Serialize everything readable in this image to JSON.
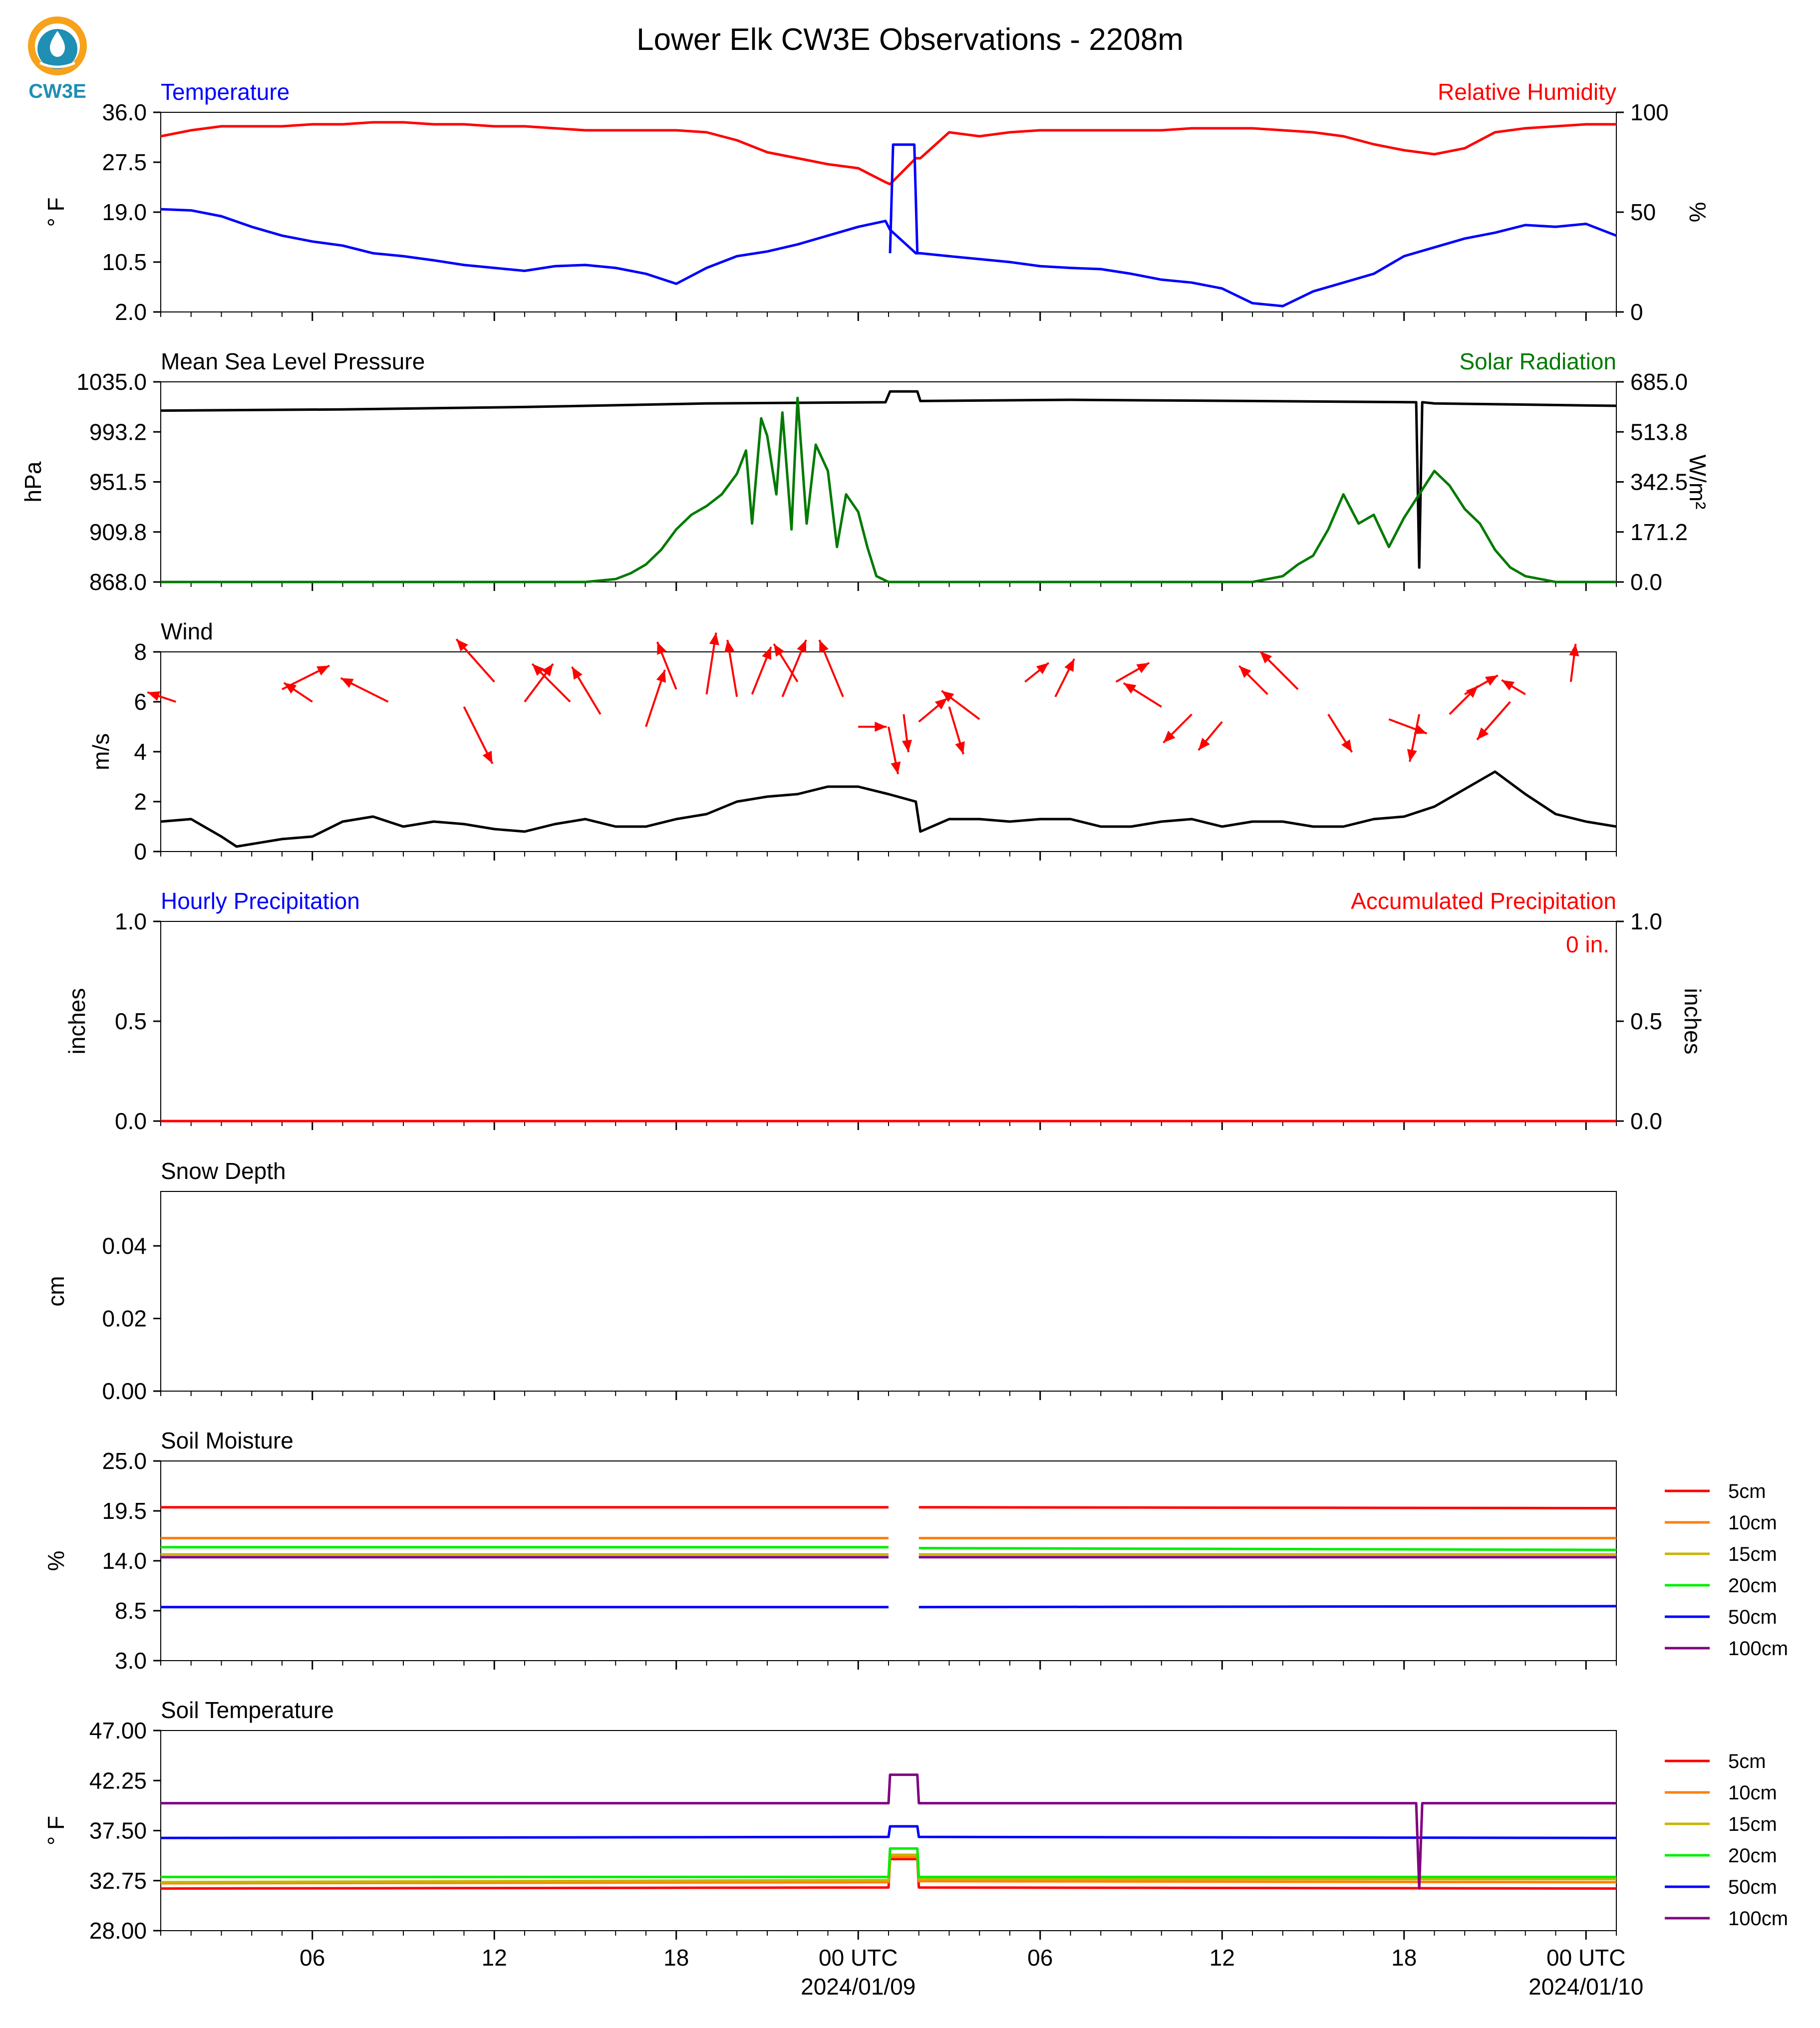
{
  "title": "Lower Elk CW3E Observations - 2208m",
  "logo": {
    "text": "CW3E",
    "color": "#1f8fb3",
    "accent": "#f7a21b"
  },
  "x_axis": {
    "tick_labels": [
      "06",
      "12",
      "18",
      "00 UTC",
      "06",
      "12",
      "18",
      "00 UTC"
    ],
    "date_labels": [
      "2024/01/09",
      "2024/01/10"
    ],
    "hours_span": [
      0,
      48
    ],
    "tick_hours": [
      5,
      11,
      17,
      23,
      29,
      35,
      41,
      47
    ]
  },
  "legend_soil_moisture": [
    "5cm",
    "10cm",
    "15cm",
    "20cm",
    "50cm",
    "100cm"
  ],
  "legend_soil_temperature": [
    "5cm",
    "10cm",
    "15cm",
    "20cm",
    "50cm",
    "100cm"
  ],
  "legend_colors": [
    "#ff0000",
    "#ff8000",
    "#c8b400",
    "#00ee00",
    "#0000ff",
    "#800080"
  ],
  "chart_data": [
    {
      "type": "line",
      "title_left": "Temperature",
      "title_right": "Relative Humidity",
      "ylabel_left": "° F",
      "ylabel_right": "%",
      "ylim_left": [
        2.0,
        36.0
      ],
      "ylim_right": [
        0,
        100
      ],
      "yticks_left": [
        "36.0",
        "27.5",
        "19.0",
        "10.5",
        "2.0"
      ],
      "yticks_right": [
        "100",
        "50",
        "0"
      ],
      "series": [
        {
          "name": "Temperature",
          "color": "#0000ff",
          "axis": "left",
          "x": [
            0,
            1,
            2,
            3,
            4,
            5,
            6,
            7,
            8,
            9,
            10,
            11,
            12,
            13,
            14,
            15,
            16,
            17,
            18,
            19,
            20,
            21,
            22,
            23,
            23.9,
            24.05,
            24.9,
            25.05,
            26,
            27,
            28,
            29,
            30,
            31,
            32,
            33,
            34,
            35,
            36,
            37,
            38,
            39,
            40,
            41,
            42,
            43,
            44,
            45,
            46,
            47,
            48
          ],
          "y": [
            19.5,
            19.3,
            18.3,
            16.5,
            15.0,
            14.0,
            13.3,
            12.0,
            11.5,
            10.8,
            10.0,
            9.5,
            9.0,
            9.8,
            10.0,
            9.5,
            8.5,
            6.8,
            9.5,
            11.5,
            12.3,
            13.5,
            15.0,
            16.5,
            17.5,
            16.0,
            12.0,
            12.0,
            11.5,
            11.0,
            10.5,
            9.8,
            9.5,
            9.3,
            8.5,
            7.5,
            7.0,
            6.0,
            3.5,
            3.0,
            5.5,
            7.0,
            8.5,
            11.5,
            13.0,
            14.5,
            15.5,
            16.8,
            16.5,
            17.0,
            15.0
          ]
        },
        {
          "name": "Relative Humidity",
          "color": "#ff0000",
          "axis": "right",
          "x": [
            0,
            1,
            2,
            3,
            4,
            5,
            6,
            7,
            8,
            9,
            10,
            11,
            12,
            13,
            14,
            15,
            16,
            17,
            18,
            19,
            20,
            21,
            22,
            23,
            23.9,
            24.05,
            24.9,
            25.05,
            26,
            27,
            28,
            29,
            30,
            31,
            32,
            33,
            34,
            35,
            36,
            37,
            38,
            39,
            40,
            41,
            42,
            43,
            44,
            45,
            46,
            47,
            48
          ],
          "y": [
            88,
            91,
            93,
            93,
            93,
            94,
            94,
            95,
            95,
            94,
            94,
            93,
            93,
            92,
            91,
            91,
            91,
            91,
            90,
            86,
            80,
            77,
            74,
            72,
            65,
            64,
            77,
            77,
            90,
            88,
            90,
            91,
            91,
            91,
            91,
            91,
            92,
            92,
            92,
            91,
            90,
            88,
            84,
            81,
            79,
            82,
            90,
            92,
            93,
            94,
            94
          ]
        },
        {
          "name": "",
          "color": "#0000ff",
          "axis": "left",
          "note_segment": true,
          "x": [
            24.05,
            24.15,
            24.85,
            24.95
          ],
          "y": [
            12.0,
            30.5,
            30.5,
            12.0
          ]
        }
      ]
    },
    {
      "type": "line",
      "title_left": "Mean Sea Level Pressure",
      "title_right": "Solar Radiation",
      "ylabel_left": "hPa",
      "ylabel_right": "W/m²",
      "ylim_left": [
        868.0,
        1035.0
      ],
      "ylim_right": [
        0.0,
        685.0
      ],
      "yticks_left": [
        "1035.0",
        "993.2",
        "951.5",
        "909.8",
        "868.0"
      ],
      "yticks_right": [
        "685.0",
        "513.8",
        "342.5",
        "171.2",
        "0.0"
      ],
      "series": [
        {
          "name": "Mean Sea Level Pressure",
          "color": "#000000",
          "axis": "left",
          "x": [
            0,
            6,
            12,
            18,
            23.9,
            24.05,
            24.95,
            25.05,
            30,
            36,
            41.4,
            41.5,
            41.6,
            42,
            48
          ],
          "y": [
            1011,
            1012,
            1014,
            1017,
            1018,
            1027,
            1027,
            1019,
            1020,
            1019,
            1018,
            880,
            1018,
            1017,
            1015
          ]
        },
        {
          "name": "Solar Radiation",
          "color": "#007a00",
          "axis": "right",
          "x": [
            0,
            14,
            15,
            15.5,
            16,
            16.5,
            17,
            17.5,
            18,
            18.5,
            19,
            19.3,
            19.5,
            19.8,
            20,
            20.3,
            20.5,
            20.8,
            21,
            21.3,
            21.6,
            22,
            22.3,
            22.6,
            23,
            23.3,
            23.6,
            24,
            36,
            37,
            37.5,
            38,
            38.5,
            39,
            39.5,
            40,
            40.5,
            41,
            41.5,
            42,
            42.5,
            43,
            43.5,
            44,
            44.5,
            45,
            46,
            48
          ],
          "y": [
            0,
            0,
            10,
            30,
            60,
            110,
            180,
            230,
            260,
            300,
            370,
            450,
            200,
            560,
            500,
            300,
            580,
            180,
            630,
            200,
            470,
            380,
            120,
            300,
            240,
            120,
            20,
            0,
            0,
            20,
            60,
            90,
            180,
            300,
            200,
            230,
            120,
            220,
            300,
            380,
            330,
            250,
            200,
            110,
            50,
            20,
            0,
            0
          ]
        }
      ]
    },
    {
      "type": "line",
      "title_left": "Wind",
      "ylabel_left": "m/s",
      "ylim_left": [
        0,
        8
      ],
      "yticks_left": [
        "8",
        "6",
        "4",
        "2",
        "0"
      ],
      "series": [
        {
          "name": "Wind",
          "color": "#000000",
          "axis": "left",
          "x": [
            0,
            1,
            2,
            2.5,
            3,
            4,
            5,
            6,
            7,
            8,
            9,
            10,
            11,
            12,
            13,
            14,
            15,
            16,
            17,
            18,
            19,
            20,
            21,
            22,
            23,
            24,
            24.9,
            25.05,
            26,
            27,
            28,
            29,
            30,
            31,
            32,
            33,
            34,
            35,
            36,
            37,
            38,
            39,
            40,
            41,
            42,
            43,
            44,
            45,
            46,
            47,
            48
          ],
          "y": [
            1.2,
            1.3,
            0.6,
            0.2,
            0.3,
            0.5,
            0.6,
            1.2,
            1.4,
            1.0,
            1.2,
            1.1,
            0.9,
            0.8,
            1.1,
            1.3,
            1.0,
            1.0,
            1.3,
            1.5,
            2.0,
            2.2,
            2.3,
            2.6,
            2.6,
            2.3,
            2.0,
            0.8,
            1.3,
            1.3,
            1.2,
            1.3,
            1.3,
            1.0,
            1.0,
            1.2,
            1.3,
            1.0,
            1.2,
            1.2,
            1.0,
            1.0,
            1.3,
            1.4,
            1.8,
            2.5,
            3.2,
            2.3,
            1.5,
            1.2,
            1.0
          ]
        }
      ],
      "arrows": {
        "color": "#ff0000",
        "x": [
          0.5,
          4.0,
          5.0,
          7.5,
          10.0,
          11.0,
          12.0,
          13.5,
          14.5,
          16.0,
          17.0,
          18.0,
          19.0,
          19.5,
          20.5,
          21.0,
          22.5,
          23.0,
          24.0,
          24.5,
          25.0,
          26.0,
          27.0,
          28.5,
          29.5,
          31.5,
          33.0,
          34.0,
          35.0,
          36.5,
          37.5,
          38.5,
          40.5,
          41.5,
          42.5,
          43.0,
          44.5,
          45.0,
          46.5
        ],
        "y": [
          6.0,
          6.5,
          6.0,
          6.0,
          5.8,
          6.8,
          6.0,
          6.0,
          5.5,
          5.0,
          6.5,
          6.3,
          6.2,
          6.3,
          6.2,
          6.8,
          6.2,
          5.0,
          5.0,
          5.5,
          5.2,
          5.8,
          5.3,
          6.8,
          6.2,
          6.8,
          5.8,
          5.5,
          5.2,
          6.3,
          6.5,
          5.5,
          5.3,
          5.5,
          5.5,
          6.3,
          6.0,
          6.3,
          6.8
        ],
        "u": [
          -0.6,
          1.0,
          -0.6,
          -1.0,
          0.6,
          -0.8,
          0.6,
          -0.8,
          -0.6,
          0.4,
          -0.4,
          0.2,
          -0.2,
          0.4,
          0.5,
          -0.5,
          -0.5,
          0.6,
          0.2,
          0.1,
          0.6,
          0.3,
          -0.8,
          0.5,
          0.4,
          0.7,
          -0.8,
          -0.6,
          -0.5,
          -0.6,
          -0.8,
          0.5,
          0.8,
          -0.2,
          0.6,
          0.7,
          -0.7,
          -0.5,
          0.1
        ],
        "v": [
          0.2,
          0.5,
          0.4,
          0.5,
          -1.2,
          0.9,
          0.8,
          0.8,
          1.0,
          1.2,
          1.0,
          1.3,
          1.2,
          1.0,
          1.2,
          0.8,
          1.2,
          0.0,
          -1.0,
          -0.8,
          0.5,
          -1.0,
          0.6,
          0.4,
          0.8,
          0.4,
          0.5,
          -0.6,
          -0.6,
          0.6,
          0.8,
          -0.8,
          -0.3,
          -1.0,
          0.6,
          0.4,
          -0.8,
          0.3,
          0.8
        ]
      }
    },
    {
      "type": "line",
      "title_left": "Hourly Precipitation",
      "title_right": "Accumulated Precipitation",
      "annotation": "0 in.",
      "ylabel_left": "inches",
      "ylabel_right": "inches",
      "ylim_left": [
        0.0,
        1.0
      ],
      "ylim_right": [
        0.0,
        1.0
      ],
      "yticks_left": [
        "1.0",
        "0.5",
        "0.0"
      ],
      "yticks_right": [
        "1.0",
        "0.5",
        "0.0"
      ],
      "series": [
        {
          "name": "Hourly Precipitation",
          "color": "#0000ff",
          "axis": "left",
          "x": [
            0,
            48
          ],
          "y": [
            0,
            0
          ]
        },
        {
          "name": "Accumulated Precipitation",
          "color": "#ff0000",
          "axis": "right",
          "x": [
            0,
            48
          ],
          "y": [
            0,
            0
          ]
        }
      ]
    },
    {
      "type": "line",
      "title_left": "Snow Depth",
      "ylabel_left": "cm",
      "ylim_left": [
        0.0,
        0.055
      ],
      "ytick_values": [
        0.04,
        0.02,
        0.0
      ],
      "yticks_left": [
        "0.04",
        "0.02",
        "0.00"
      ],
      "series": []
    },
    {
      "type": "line",
      "title_left": "Soil Moisture",
      "ylabel_left": "%",
      "ylim_left": [
        3.0,
        25.0
      ],
      "yticks_left": [
        "25.0",
        "19.5",
        "14.0",
        "8.5",
        "3.0"
      ],
      "series": [
        {
          "name": "5cm",
          "color": "#ff0000",
          "x": [
            0,
            24,
            25,
            48
          ],
          "y": [
            19.9,
            19.9,
            19.9,
            19.8
          ]
        },
        {
          "name": "10cm",
          "color": "#ff8000",
          "x": [
            0,
            24,
            25,
            48
          ],
          "y": [
            16.5,
            16.5,
            16.5,
            16.5
          ]
        },
        {
          "name": "15cm",
          "color": "#c8b400",
          "x": [
            0,
            24,
            25,
            48
          ],
          "y": [
            14.7,
            14.7,
            14.7,
            14.7
          ]
        },
        {
          "name": "20cm",
          "color": "#00ee00",
          "x": [
            0,
            24,
            25,
            48
          ],
          "y": [
            15.5,
            15.5,
            15.4,
            15.2
          ]
        },
        {
          "name": "50cm",
          "color": "#0000ff",
          "x": [
            0,
            24,
            25,
            48
          ],
          "y": [
            8.9,
            8.9,
            8.9,
            9.0
          ]
        },
        {
          "name": "100cm",
          "color": "#800080",
          "x": [
            0,
            24,
            25,
            48
          ],
          "y": [
            14.4,
            14.4,
            14.4,
            14.4
          ]
        }
      ],
      "gap": [
        24.1,
        24.9
      ]
    },
    {
      "type": "line",
      "title_left": "Soil Temperature",
      "ylabel_left": "° F",
      "ylim_left": [
        28.0,
        47.0
      ],
      "yticks_left": [
        "47.00",
        "42.25",
        "37.50",
        "32.75",
        "28.00"
      ],
      "series": [
        {
          "name": "5cm",
          "color": "#ff0000",
          "x": [
            0,
            24,
            24.05,
            24.95,
            25,
            48
          ],
          "y": [
            32.0,
            32.1,
            34.8,
            34.8,
            32.1,
            32.0
          ]
        },
        {
          "name": "10cm",
          "color": "#ff8000",
          "x": [
            0,
            24,
            24.05,
            24.95,
            25,
            48
          ],
          "y": [
            32.5,
            32.6,
            35.0,
            35.0,
            32.7,
            32.6
          ]
        },
        {
          "name": "15cm",
          "color": "#c8b400",
          "x": [
            0,
            24,
            24.05,
            24.95,
            25,
            48
          ],
          "y": [
            32.6,
            32.8,
            35.2,
            35.2,
            32.9,
            32.9
          ]
        },
        {
          "name": "20cm",
          "color": "#00ee00",
          "x": [
            0,
            24,
            24.05,
            24.95,
            25,
            48
          ],
          "y": [
            33.1,
            33.1,
            35.8,
            35.8,
            33.1,
            33.1
          ]
        },
        {
          "name": "50cm",
          "color": "#0000ff",
          "x": [
            0,
            24,
            24.05,
            24.95,
            25,
            48
          ],
          "y": [
            36.8,
            36.9,
            37.9,
            37.9,
            36.9,
            36.8
          ]
        },
        {
          "name": "100cm",
          "color": "#800080",
          "x": [
            0,
            24,
            24.05,
            24.95,
            25,
            41.4,
            41.5,
            41.6,
            48
          ],
          "y": [
            40.1,
            40.1,
            42.8,
            42.8,
            40.1,
            40.1,
            32.0,
            40.1,
            40.1
          ]
        }
      ]
    }
  ]
}
